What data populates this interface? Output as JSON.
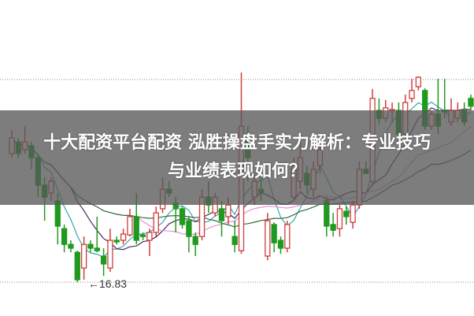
{
  "title": {
    "line1": "十大配资平台配资 泓胜操盘手实力解析：专业技巧",
    "line2": "与业绩表现如何？"
  },
  "chart_data": {
    "type": "candlestick",
    "ylim": [
      15.76,
      25.78
    ],
    "gridlines": [
      16.83,
      23.26
    ],
    "grid": "horizontal dotted",
    "annotations": [
      {
        "text": "←16.83",
        "price": 16.83
      }
    ],
    "colors": {
      "up": "#d23c3c",
      "down": "#1f9a1f",
      "ma5": "#3aa6b0",
      "ma10": "#4a2a5a",
      "ma20": "#e890d8",
      "ma30": "#2f6b3a"
    },
    "moving_averages": [
      5,
      10,
      20,
      30
    ],
    "candles_ohlc": [
      [
        20.91,
        21.66,
        20.78,
        21.41
      ],
      [
        21.28,
        21.41,
        20.78,
        20.91
      ],
      [
        21.03,
        21.78,
        20.91,
        21.28
      ],
      [
        21.16,
        21.28,
        20.41,
        20.78
      ],
      [
        20.78,
        20.91,
        19.53,
        19.91
      ],
      [
        19.91,
        20.16,
        18.78,
        19.53
      ],
      [
        19.66,
        20.16,
        19.41,
        20.03
      ],
      [
        19.41,
        19.66,
        18.03,
        18.61
      ],
      [
        18.53,
        18.66,
        17.78,
        18.03
      ],
      [
        18.03,
        18.16,
        17.78,
        17.91
      ],
      [
        17.78,
        17.83,
        16.83,
        16.91
      ],
      [
        17.28,
        18.28,
        16.91,
        18.03
      ],
      [
        18.03,
        18.16,
        17.78,
        17.91
      ],
      [
        17.91,
        18.91,
        17.78,
        17.83
      ],
      [
        17.66,
        17.91,
        17.03,
        17.41
      ],
      [
        17.28,
        18.53,
        17.16,
        18.16
      ],
      [
        18.16,
        18.28,
        18.03,
        18.11
      ],
      [
        18.16,
        18.53,
        18.03,
        18.36
      ],
      [
        18.33,
        19.16,
        18.28,
        18.91
      ],
      [
        18.91,
        19.66,
        18.03,
        18.16
      ],
      [
        18.33,
        18.41,
        18.16,
        18.28
      ],
      [
        18.16,
        18.53,
        17.66,
        18.41
      ],
      [
        18.41,
        19.23,
        18.28,
        19.03
      ],
      [
        19.16,
        20.16,
        19.03,
        19.78
      ],
      [
        19.78,
        20.03,
        19.53,
        19.66
      ],
      [
        19.33,
        19.53,
        18.41,
        19.16
      ],
      [
        19.16,
        19.23,
        18.53,
        18.66
      ],
      [
        18.78,
        18.91,
        17.78,
        18.28
      ],
      [
        18.28,
        18.41,
        17.66,
        18.03
      ],
      [
        18.28,
        19.78,
        18.16,
        19.53
      ],
      [
        19.53,
        20.03,
        19.03,
        19.28
      ],
      [
        19.03,
        19.66,
        18.91,
        19.53
      ],
      [
        19.16,
        19.41,
        18.28,
        18.78
      ],
      [
        18.91,
        19.53,
        18.66,
        19.28
      ],
      [
        18.28,
        18.78,
        17.78,
        18.03
      ],
      [
        17.83,
        23.48,
        17.73,
        21.78
      ],
      [
        21.53,
        21.78,
        20.03,
        20.78
      ],
      [
        19.53,
        20.28,
        19.28,
        20.03
      ],
      [
        19.78,
        20.28,
        19.41,
        19.66
      ],
      [
        17.66,
        19.03,
        17.53,
        18.78
      ],
      [
        18.66,
        18.73,
        17.78,
        18.08
      ],
      [
        18.16,
        18.28,
        17.73,
        17.91
      ],
      [
        17.91,
        18.78,
        17.78,
        18.66
      ],
      [
        19.53,
        20.78,
        19.41,
        20.53
      ],
      [
        20.03,
        21.53,
        19.78,
        20.78
      ],
      [
        20.28,
        20.53,
        19.66,
        19.91
      ],
      [
        19.78,
        20.66,
        19.53,
        20.41
      ],
      [
        20.53,
        21.28,
        20.28,
        21.03
      ],
      [
        19.41,
        19.53,
        18.28,
        18.61
      ],
      [
        18.66,
        19.03,
        18.28,
        18.48
      ],
      [
        18.53,
        19.28,
        18.28,
        19.16
      ],
      [
        19.08,
        19.23,
        18.66,
        18.91
      ],
      [
        18.73,
        19.41,
        18.53,
        19.28
      ],
      [
        19.28,
        20.66,
        19.16,
        20.41
      ],
      [
        20.41,
        20.66,
        20.28,
        20.28
      ],
      [
        20.03,
        22.96,
        19.91,
        22.66
      ],
      [
        22.28,
        22.66,
        21.83,
        22.03
      ],
      [
        22.03,
        22.61,
        21.91,
        22.36
      ],
      [
        22.28,
        22.53,
        21.91,
        22.31
      ],
      [
        22.28,
        22.53,
        21.28,
        21.53
      ],
      [
        21.53,
        22.78,
        21.41,
        22.53
      ],
      [
        22.66,
        23.28,
        22.53,
        22.91
      ],
      [
        23.03,
        23.36,
        22.91,
        23.33
      ],
      [
        22.91,
        22.98,
        21.66,
        21.78
      ],
      [
        21.78,
        22.28,
        21.66,
        22.16
      ],
      [
        22.16,
        23.28,
        21.53,
        21.78
      ],
      [
        22.28,
        23.28,
        22.03,
        22.23
      ],
      [
        21.91,
        22.66,
        21.78,
        22.28
      ],
      [
        22.03,
        22.53,
        21.91,
        22.28
      ],
      [
        22.28,
        22.53,
        21.78,
        21.91
      ],
      [
        22.66,
        22.78,
        22.28,
        22.41
      ]
    ]
  }
}
